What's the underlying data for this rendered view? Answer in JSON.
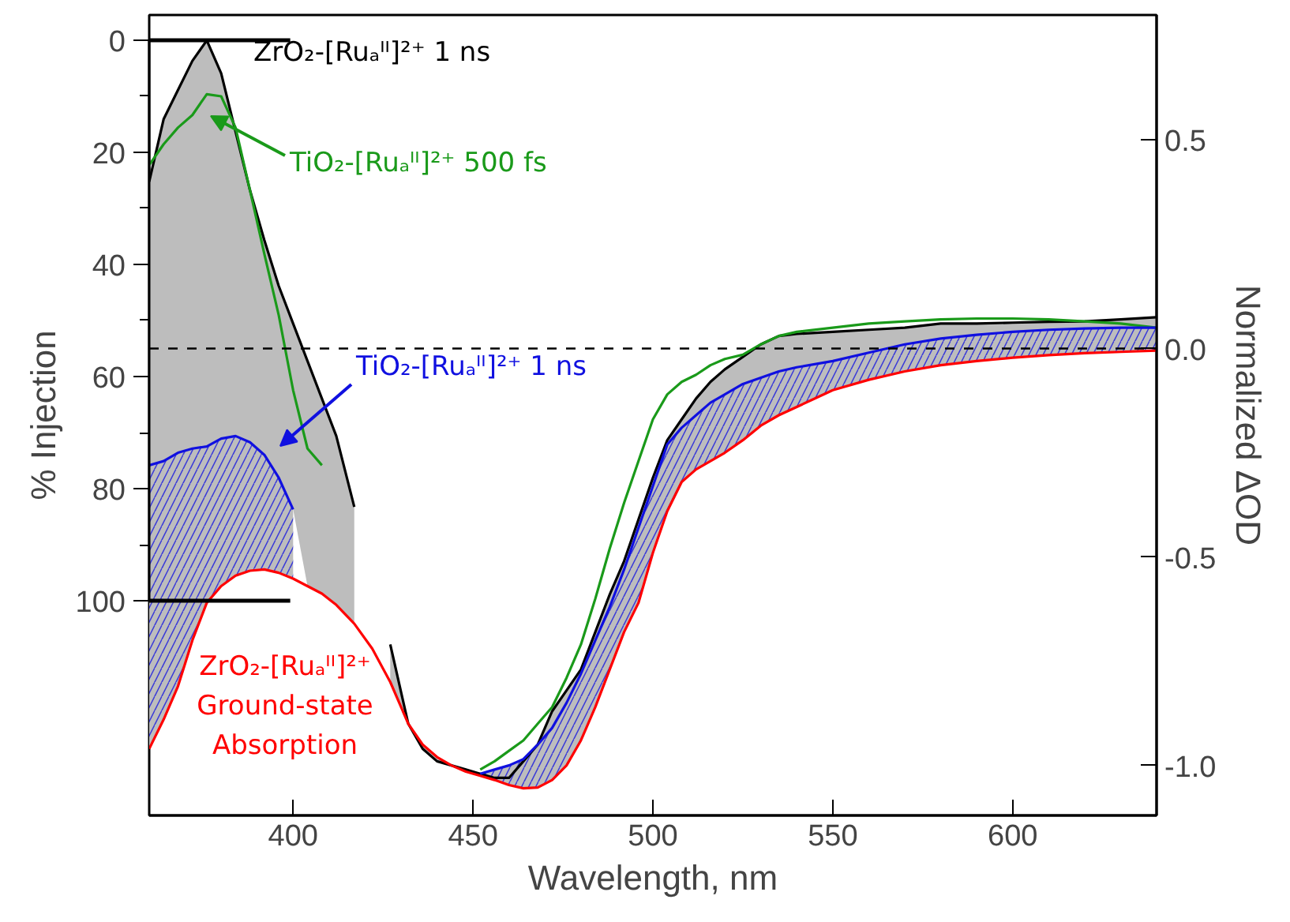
{
  "chart_data": {
    "type": "line",
    "xlabel": "Wavelength, nm",
    "ylabel": "% Injection",
    "y2label": "Normalized ΔOD",
    "x": [
      360,
      364,
      368,
      372,
      376,
      380,
      384,
      388,
      392,
      396,
      400,
      404,
      408,
      412,
      417,
      422,
      427,
      432,
      436,
      440,
      444,
      448,
      452,
      456,
      460,
      464,
      468,
      472,
      476,
      480,
      484,
      488,
      492,
      496,
      500,
      504,
      508,
      512,
      516,
      520,
      525,
      530,
      535,
      540,
      550,
      560,
      570,
      580,
      590,
      600,
      610,
      620,
      630,
      640
    ],
    "xlim": [
      360,
      640
    ],
    "xticks": [
      400,
      450,
      500,
      550,
      600
    ],
    "ylim": [
      138.3,
      -4.5
    ],
    "yticks": [
      0,
      {
        "value": 10,
        "label": null
      },
      20,
      {
        "value": 30,
        "label": null
      },
      40,
      {
        "value": 50,
        "label": null
      },
      60,
      {
        "value": 70,
        "label": null
      },
      80,
      {
        "value": 90,
        "label": null
      },
      100
    ],
    "y2lim": [
      -1.12,
      0.8
    ],
    "y2ticks": [
      {
        "value": -1.0,
        "label": "-1.0"
      },
      {
        "value": -0.5,
        "label": "-0.5"
      },
      {
        "value": 0.0,
        "label": "0.0"
      },
      {
        "value": 0.5,
        "label": "0.5"
      }
    ],
    "series": [
      {
        "color": "#000000",
        "axis": "y2",
        "values": [
          0.4,
          0.55,
          0.62,
          0.69,
          0.739,
          0.66,
          0.52,
          0.38,
          0.26,
          0.15,
          0.06,
          -0.03,
          -0.12,
          -0.21,
          -0.38,
          null,
          -0.71,
          -0.9,
          -0.96,
          -0.99,
          -1.0,
          -1.01,
          -1.02,
          -1.03,
          -1.03,
          -0.99,
          -0.95,
          -0.87,
          -0.82,
          -0.77,
          -0.68,
          -0.59,
          -0.51,
          -0.41,
          -0.31,
          -0.22,
          -0.17,
          -0.12,
          -0.08,
          -0.05,
          -0.02,
          0.01,
          0.03,
          0.035,
          0.04,
          0.045,
          0.05,
          0.06,
          0.06,
          0.062,
          0.064,
          0.065,
          0.07,
          0.075
        ],
        "upper": [
          0.4,
          0.55,
          0.62,
          0.69,
          0.739,
          0.66,
          0.52,
          0.38,
          0.26,
          0.15,
          0.06,
          -0.03,
          -0.12,
          -0.21,
          -0.38,
          null,
          -0.71,
          -0.9,
          -0.96,
          -0.99,
          -1.0,
          -1.01,
          -1.02,
          -1.03,
          -1.03,
          -0.99,
          -0.95,
          -0.87,
          -0.82,
          -0.77,
          -0.68,
          -0.59,
          -0.51,
          -0.41,
          -0.31,
          -0.22,
          -0.17,
          -0.12,
          -0.08,
          -0.05,
          -0.02,
          0.01,
          0.03,
          0.035,
          0.04,
          0.045,
          0.05,
          0.06,
          0.06,
          0.062,
          0.064,
          0.065,
          0.07,
          0.075
        ],
        "lower": [
          -0.28,
          -0.27,
          -0.25,
          -0.24,
          -0.235,
          -0.216,
          -0.21,
          -0.225,
          -0.255,
          -0.31,
          -0.386,
          -0.57,
          -0.588,
          -0.615,
          -0.66,
          null,
          -0.8,
          -0.9,
          -0.95,
          -0.98,
          -1.0,
          -1.015,
          -1.02,
          -1.01,
          -1.0,
          -0.985,
          -0.95,
          -0.91,
          -0.85,
          -0.78,
          -0.7,
          -0.62,
          -0.53,
          -0.43,
          -0.33,
          -0.23,
          -0.19,
          -0.16,
          -0.13,
          -0.11,
          -0.085,
          -0.07,
          -0.055,
          -0.045,
          -0.03,
          -0.01,
          0.01,
          0.024,
          0.033,
          0.04,
          0.045,
          0.048,
          0.05,
          0.05
        ]
      },
      {
        "color": "#1a9a1a",
        "axis": "y2",
        "values": [
          0.44,
          0.49,
          0.53,
          0.56,
          0.61,
          0.605,
          0.53,
          0.38,
          0.227,
          0.08,
          -0.1,
          -0.24,
          -0.28,
          null,
          null,
          null,
          null,
          null,
          null,
          null,
          null,
          null,
          -1.01,
          -0.99,
          -0.965,
          -0.94,
          -0.9,
          -0.86,
          -0.79,
          -0.71,
          -0.6,
          -0.48,
          -0.37,
          -0.27,
          -0.17,
          -0.11,
          -0.08,
          -0.063,
          -0.04,
          -0.025,
          -0.015,
          0.01,
          0.03,
          0.04,
          0.05,
          0.06,
          0.065,
          0.07,
          0.072,
          0.072,
          0.07,
          0.065,
          0.06,
          0.05
        ]
      },
      {
        "color": "#1010e0",
        "axis": "y2",
        "values": [
          -0.28,
          -0.27,
          -0.25,
          -0.24,
          -0.235,
          -0.216,
          -0.21,
          -0.225,
          -0.255,
          -0.31,
          -0.386,
          null,
          null,
          null,
          null,
          null,
          null,
          null,
          null,
          null,
          null,
          null,
          -1.02,
          -1.01,
          -1.0,
          -0.985,
          -0.95,
          -0.91,
          -0.85,
          -0.78,
          -0.7,
          -0.62,
          -0.53,
          -0.43,
          -0.33,
          -0.23,
          -0.19,
          -0.16,
          -0.13,
          -0.11,
          -0.085,
          -0.07,
          -0.055,
          -0.045,
          -0.03,
          -0.01,
          0.01,
          0.024,
          0.033,
          0.04,
          0.045,
          0.048,
          0.05,
          0.05
        ],
        "upper": [
          -0.28,
          -0.27,
          -0.25,
          -0.24,
          -0.235,
          -0.216,
          -0.21,
          -0.225,
          -0.255,
          -0.31,
          -0.386,
          null,
          null,
          null,
          null,
          null,
          null,
          null,
          null,
          null,
          null,
          null,
          -1.02,
          -1.01,
          -1.0,
          -0.985,
          -0.95,
          -0.91,
          -0.85,
          -0.78,
          -0.7,
          -0.62,
          -0.53,
          -0.43,
          -0.33,
          -0.23,
          -0.19,
          -0.16,
          -0.13,
          -0.11,
          -0.085,
          -0.07,
          -0.055,
          -0.045,
          -0.03,
          -0.01,
          0.01,
          0.024,
          0.033,
          0.04,
          0.045,
          0.048,
          0.05,
          0.05
        ],
        "lower": [
          -0.96,
          -0.89,
          -0.81,
          -0.7,
          -0.61,
          -0.57,
          -0.545,
          -0.533,
          -0.53,
          -0.538,
          -0.552,
          null,
          null,
          null,
          null,
          null,
          null,
          null,
          null,
          null,
          null,
          null,
          -1.025,
          -1.035,
          -1.047,
          -1.055,
          -1.053,
          -1.035,
          -1.0,
          -0.94,
          -0.86,
          -0.77,
          -0.68,
          -0.61,
          -0.49,
          -0.39,
          -0.32,
          -0.29,
          -0.27,
          -0.25,
          -0.22,
          -0.185,
          -0.16,
          -0.14,
          -0.1,
          -0.075,
          -0.055,
          -0.04,
          -0.03,
          -0.022,
          -0.016,
          -0.011,
          -0.008,
          -0.005
        ]
      },
      {
        "color": "#ff0000",
        "axis": "y2",
        "values": [
          -0.96,
          -0.89,
          -0.81,
          -0.7,
          -0.61,
          -0.57,
          -0.545,
          -0.533,
          -0.53,
          -0.538,
          -0.552,
          -0.57,
          -0.588,
          -0.615,
          -0.66,
          -0.72,
          -0.8,
          -0.9,
          -0.95,
          -0.98,
          -1.0,
          -1.015,
          -1.025,
          -1.035,
          -1.047,
          -1.055,
          -1.053,
          -1.035,
          -1.0,
          -0.94,
          -0.86,
          -0.77,
          -0.68,
          -0.61,
          -0.49,
          -0.39,
          -0.32,
          -0.29,
          -0.27,
          -0.25,
          -0.22,
          -0.185,
          -0.16,
          -0.14,
          -0.1,
          -0.075,
          -0.055,
          -0.04,
          -0.03,
          -0.022,
          -0.016,
          -0.011,
          -0.008,
          -0.005
        ]
      }
    ],
    "annotations": [
      "ZrO₂-[Ruₐᴵᴵ]²⁺ 1 ns",
      "TiO₂-[Ruₐᴵᴵ]²⁺ 500 fs",
      "TiO₂-[Ruₐᴵᴵ]²⁺ 1 ns",
      "ZrO₂-[Ruₐᴵᴵ]²⁺\nGround-state\nAbsorption"
    ],
    "ref_lines": [
      {
        "axis": "y2",
        "value": 0.0,
        "line_style": "dashed",
        "color": "#000000"
      },
      {
        "axis": "y",
        "value": 0,
        "color": "#000000"
      },
      {
        "axis": "y",
        "value": 100,
        "color": "#000000"
      }
    ],
    "line_style": "solid"
  }
}
